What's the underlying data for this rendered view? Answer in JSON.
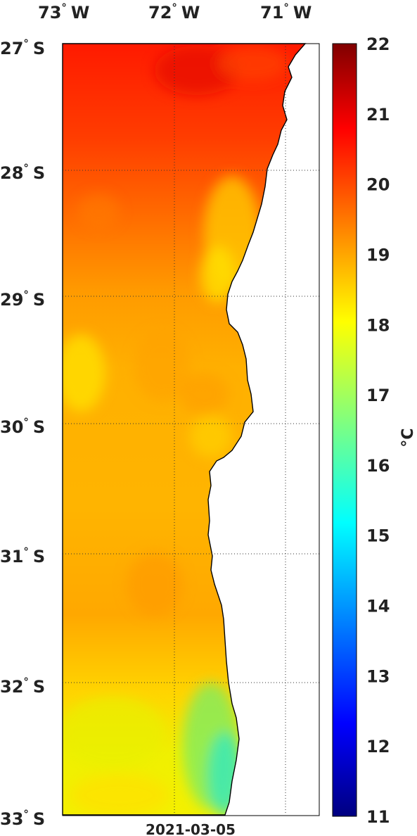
{
  "map": {
    "lon_labels": [
      {
        "value": "73",
        "unit": "W"
      },
      {
        "value": "72",
        "unit": "W"
      },
      {
        "value": "71",
        "unit": "W"
      }
    ],
    "lat_labels": [
      {
        "value": "27",
        "unit": "S"
      },
      {
        "value": "28",
        "unit": "S"
      },
      {
        "value": "29",
        "unit": "S"
      },
      {
        "value": "30",
        "unit": "S"
      },
      {
        "value": "31",
        "unit": "S"
      },
      {
        "value": "32",
        "unit": "S"
      },
      {
        "value": "33",
        "unit": "S"
      }
    ],
    "degree_symbol": "°",
    "date": "2021-03-05"
  },
  "colorbar": {
    "ticks": [
      "22",
      "21",
      "20",
      "19",
      "18",
      "17",
      "16",
      "15",
      "14",
      "13",
      "12",
      "11"
    ],
    "unit_label": "°C",
    "min": 11,
    "max": 22,
    "colormap": "jet"
  },
  "colors": {
    "land": "#ffffff",
    "coast": "#000000",
    "sea_warm": "#ff3a00",
    "sea_mid": "#ffb400",
    "sea_cool": "#f0f000",
    "sea_coolest": "#40e8b0"
  }
}
